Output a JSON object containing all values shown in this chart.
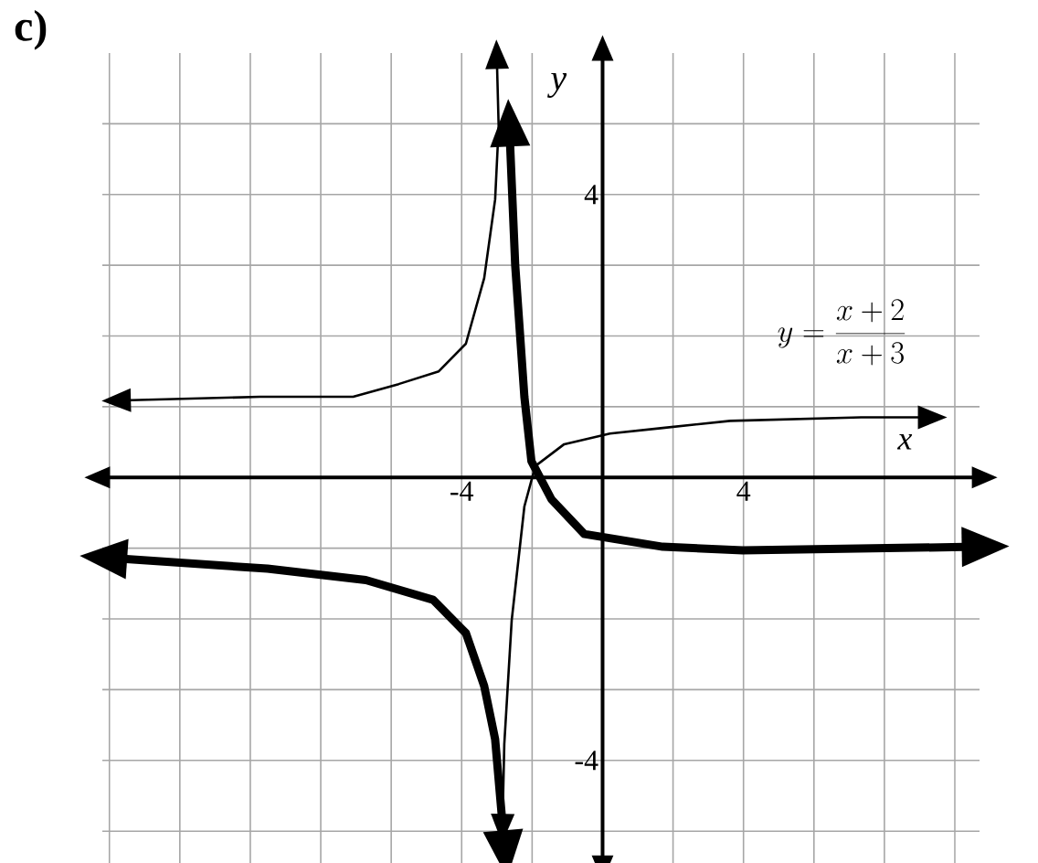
{
  "chart_data": {
    "type": "line",
    "title": "c)",
    "xlabel": "x",
    "ylabel": "y",
    "annotations": [
      "y = \\frac{x + 2}{x + 3}"
    ],
    "xlim": [
      -14.2,
      10.7
    ],
    "ylim": [
      -5.45,
      6
    ],
    "xticks": [
      {
        "value": -14,
        "label": null
      },
      {
        "value": -12,
        "label": null
      },
      {
        "value": -10,
        "label": null
      },
      {
        "value": -8,
        "label": null
      },
      {
        "value": -6,
        "label": null
      },
      -4,
      {
        "value": -2,
        "label": null
      },
      {
        "value": 0,
        "label": null
      },
      {
        "value": 2,
        "label": null
      },
      4,
      {
        "value": 6,
        "label": null
      },
      {
        "value": 8,
        "label": null
      },
      {
        "value": 10,
        "label": null
      }
    ],
    "yticks": [
      {
        "value": -5,
        "label": null
      },
      -4,
      {
        "value": -3,
        "label": null
      },
      {
        "value": -2,
        "label": null
      },
      {
        "value": -1,
        "label": null
      },
      {
        "value": 0,
        "label": null
      },
      {
        "value": 1,
        "label": null
      },
      {
        "value": 2,
        "label": null
      },
      {
        "value": 3,
        "label": null
      },
      4,
      {
        "value": 5,
        "label": null
      }
    ],
    "grid": true,
    "marker": "none",
    "line_style": "solid",
    "series": [
      {
        "color": "#000000",
        "x": [
          -13.64,
          -9.72,
          -7.08,
          -5.79,
          -4.65,
          -3.88,
          -3.36,
          -3.05,
          -2.95,
          -3.0,
          null,
          -2.84,
          -2.79,
          -2.58,
          -2.22,
          -1.91,
          -1.09,
          0.21,
          1.71,
          3.62,
          7.34,
          9.2
        ],
        "values": [
          1.09,
          1.14,
          1.14,
          1.32,
          1.5,
          1.89,
          2.82,
          3.93,
          4.96,
          5.9,
          null,
          -4.88,
          -3.77,
          -2.02,
          -0.41,
          0.16,
          0.47,
          0.62,
          0.7,
          0.8,
          0.85,
          0.85
        ]
      },
      {
        "color": "#000000",
        "x": [
          -13.9,
          -9.51,
          -6.72,
          -4.81,
          -3.88,
          -3.36,
          -3.05,
          -2.79,
          null,
          -2.64,
          -2.48,
          -2.22,
          -2.02,
          -1.45,
          -0.52,
          1.71,
          3.98,
          10.6
        ],
        "values": [
          -1.14,
          -1.29,
          -1.45,
          -1.73,
          -2.2,
          -2.95,
          -3.7,
          -5.19,
          null,
          4.88,
          3.0,
          1.14,
          0.23,
          -0.31,
          -0.8,
          -0.98,
          -1.03,
          -0.98
        ]
      }
    ]
  }
}
